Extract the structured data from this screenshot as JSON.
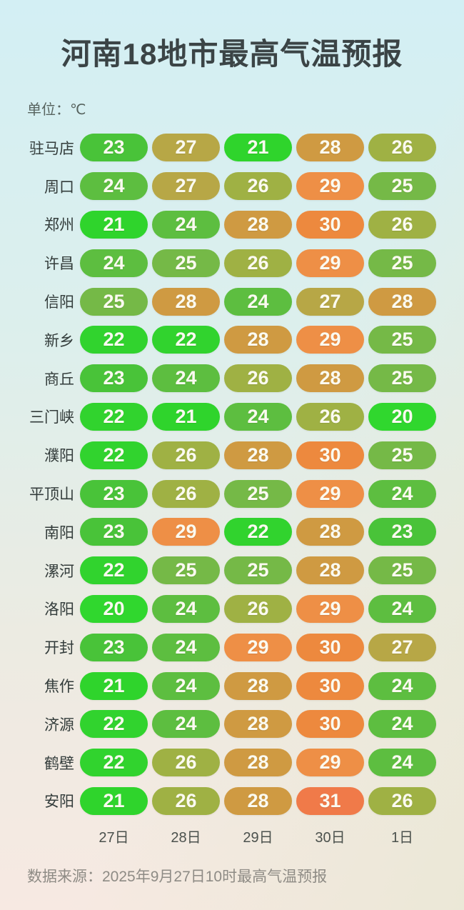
{
  "page": {
    "title": "河南18地市最高气温预报",
    "unit_label": "单位：℃",
    "source_label": "数据来源：2025年9月27日10时最高气温预报"
  },
  "chart_data": {
    "type": "heatmap",
    "title": "河南18地市最高气温预报",
    "unit": "℃",
    "columns": [
      "27日",
      "28日",
      "29日",
      "30日",
      "1日"
    ],
    "rows": [
      {
        "city": "驻马店",
        "values": [
          23,
          27,
          21,
          28,
          26
        ]
      },
      {
        "city": "周口",
        "values": [
          24,
          27,
          26,
          29,
          25
        ]
      },
      {
        "city": "郑州",
        "values": [
          21,
          24,
          28,
          30,
          26
        ]
      },
      {
        "city": "许昌",
        "values": [
          24,
          25,
          26,
          29,
          25
        ]
      },
      {
        "city": "信阳",
        "values": [
          25,
          28,
          24,
          27,
          28
        ]
      },
      {
        "city": "新乡",
        "values": [
          22,
          22,
          28,
          29,
          25
        ]
      },
      {
        "city": "商丘",
        "values": [
          23,
          24,
          26,
          28,
          25
        ]
      },
      {
        "city": "三门峡",
        "values": [
          22,
          21,
          24,
          26,
          20
        ]
      },
      {
        "city": "濮阳",
        "values": [
          22,
          26,
          28,
          30,
          25
        ]
      },
      {
        "city": "平顶山",
        "values": [
          23,
          26,
          25,
          29,
          24
        ]
      },
      {
        "city": "南阳",
        "values": [
          23,
          29,
          22,
          28,
          23
        ]
      },
      {
        "city": "漯河",
        "values": [
          22,
          25,
          25,
          28,
          25
        ]
      },
      {
        "city": "洛阳",
        "values": [
          20,
          24,
          26,
          29,
          24
        ]
      },
      {
        "city": "开封",
        "values": [
          23,
          24,
          29,
          30,
          27
        ]
      },
      {
        "city": "焦作",
        "values": [
          21,
          24,
          28,
          30,
          24
        ]
      },
      {
        "city": "济源",
        "values": [
          22,
          24,
          28,
          30,
          24
        ]
      },
      {
        "city": "鹤壁",
        "values": [
          22,
          26,
          28,
          29,
          24
        ]
      },
      {
        "city": "安阳",
        "values": [
          21,
          26,
          28,
          31,
          26
        ]
      }
    ],
    "color_scale": {
      "20": "#30d72e",
      "21": "#2fd42c",
      "22": "#31d32e",
      "23": "#49c339",
      "24": "#5dbe40",
      "25": "#75b947",
      "26": "#9fb144",
      "27": "#b7a746",
      "28": "#cf9a42",
      "29": "#ee8f46",
      "30": "#ed893e",
      "31": "#f07a49"
    },
    "value_text_color": "#fbfaf0",
    "layout": {
      "legend": "none",
      "grid": "off"
    }
  }
}
